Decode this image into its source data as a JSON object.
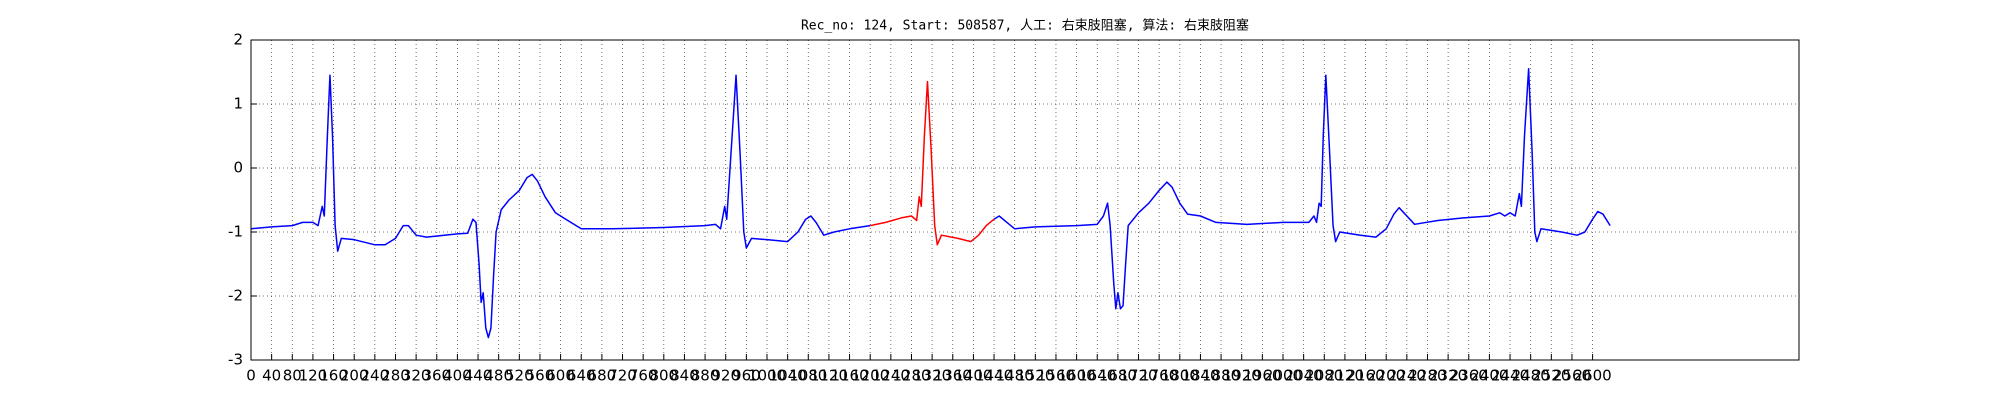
{
  "chart_data": {
    "type": "line",
    "title": "Rec_no: 124, Start: 508587, 人工: 右束肢阻塞, 算法: 右束肢阻塞",
    "xlim": [
      0,
      3000
    ],
    "ylim": [
      -3,
      2
    ],
    "xticks": [
      0,
      40,
      80,
      120,
      160,
      200,
      240,
      280,
      320,
      360,
      400,
      440,
      480,
      520,
      560,
      600,
      640,
      680,
      720,
      760,
      800,
      840,
      880,
      920,
      960,
      1000,
      1040,
      1080,
      1120,
      1160,
      1200,
      1240,
      1280,
      1320,
      1360,
      1400,
      1440,
      1480,
      1520,
      1560,
      1600,
      1640,
      1680,
      1720,
      1760,
      1800,
      1840,
      1880,
      1920,
      1960,
      2000,
      2040,
      2080,
      2120,
      2160,
      2200,
      2240,
      2280,
      2320,
      2360,
      2400,
      2440,
      2480,
      2520,
      2560,
      2600
    ],
    "yticks": [
      -3,
      -2,
      -1,
      0,
      1,
      2
    ],
    "grid": true,
    "x": [
      0,
      40,
      80,
      100,
      120,
      130,
      138,
      142,
      148,
      153,
      158,
      163,
      168,
      175,
      200,
      240,
      260,
      280,
      295,
      305,
      320,
      340,
      400,
      420,
      430,
      436,
      442,
      446,
      450,
      455,
      460,
      465,
      470,
      475,
      485,
      500,
      520,
      535,
      545,
      555,
      570,
      590,
      610,
      640,
      700,
      800,
      880,
      900,
      910,
      918,
      922,
      930,
      940,
      948,
      955,
      960,
      970,
      1000,
      1040,
      1060,
      1075,
      1085,
      1095,
      1110,
      1130,
      1160,
      1200,
      1230,
      1260,
      1280,
      1290,
      1295,
      1299,
      1305,
      1311,
      1318,
      1325,
      1330,
      1338,
      1370,
      1395,
      1410,
      1425,
      1440,
      1450,
      1465,
      1480,
      1520,
      1600,
      1640,
      1652,
      1660,
      1665,
      1672,
      1676,
      1680,
      1685,
      1690,
      1695,
      1700,
      1720,
      1740,
      1760,
      1775,
      1785,
      1800,
      1815,
      1840,
      1870,
      1930,
      2000,
      2050,
      2060,
      2065,
      2070,
      2074,
      2078,
      2083,
      2090,
      2097,
      2102,
      2110,
      2150,
      2180,
      2200,
      2215,
      2225,
      2240,
      2255,
      2300,
      2350,
      2400,
      2420,
      2430,
      2440,
      2450,
      2458,
      2462,
      2468,
      2476,
      2483,
      2488,
      2492,
      2500,
      2540,
      2570,
      2585,
      2600,
      2610,
      2620,
      2634
    ],
    "series": [
      {
        "color": "#0000ff",
        "values": [
          -0.95,
          -0.92,
          -0.9,
          -0.85,
          -0.85,
          -0.9,
          -0.6,
          -0.75,
          0.5,
          1.45,
          0.5,
          -0.9,
          -1.3,
          -1.1,
          -1.12,
          -1.2,
          -1.2,
          -1.1,
          -0.9,
          -0.9,
          -1.05,
          -1.08,
          -1.03,
          -1.02,
          -0.8,
          -0.85,
          -1.5,
          -2.1,
          -1.95,
          -2.5,
          -2.65,
          -2.5,
          -1.7,
          -1.0,
          -0.65,
          -0.5,
          -0.35,
          -0.15,
          -0.1,
          -0.2,
          -0.45,
          -0.7,
          -0.8,
          -0.95,
          -0.95,
          -0.93,
          -0.9,
          -0.88,
          -0.95,
          -0.6,
          -0.8,
          0.2,
          1.45,
          0.2,
          -1.0,
          -1.25,
          -1.1,
          -1.12,
          -1.15,
          -1.0,
          -0.8,
          -0.75,
          -0.85,
          -1.05,
          -1.0,
          -0.95,
          -0.9,
          null,
          null,
          null,
          null,
          null,
          null,
          null,
          null,
          null,
          null,
          null,
          null,
          null,
          null,
          null,
          null,
          -0.8,
          -0.75,
          -0.85,
          -0.95,
          -0.92,
          -0.9,
          -0.88,
          -0.75,
          -0.55,
          -0.9,
          -1.8,
          -2.2,
          -1.95,
          -2.2,
          -2.15,
          -1.5,
          -0.9,
          -0.7,
          -0.55,
          -0.35,
          -0.22,
          -0.3,
          -0.55,
          -0.72,
          -0.75,
          -0.85,
          -0.88,
          -0.85,
          -0.85,
          -0.75,
          -0.85,
          -0.55,
          -0.6,
          0.5,
          1.45,
          0.3,
          -0.9,
          -1.15,
          -1.0,
          -1.05,
          -1.08,
          -0.95,
          -0.72,
          -0.62,
          -0.75,
          -0.88,
          -0.82,
          -0.78,
          -0.75,
          -0.7,
          -0.75,
          -0.7,
          -0.75,
          -0.4,
          -0.6,
          0.5,
          1.55,
          0.2,
          -1.0,
          -1.15,
          -0.95,
          -1.0,
          -1.05,
          -1.0,
          -0.8,
          -0.68,
          -0.72,
          -0.9
        ]
      },
      {
        "color": "#ff0000",
        "values": [
          null,
          null,
          null,
          null,
          null,
          null,
          null,
          null,
          null,
          null,
          null,
          null,
          null,
          null,
          null,
          null,
          null,
          null,
          null,
          null,
          null,
          null,
          null,
          null,
          null,
          null,
          null,
          null,
          null,
          null,
          null,
          null,
          null,
          null,
          null,
          null,
          null,
          null,
          null,
          null,
          null,
          null,
          null,
          null,
          null,
          null,
          null,
          null,
          null,
          null,
          null,
          null,
          null,
          null,
          null,
          null,
          null,
          null,
          null,
          null,
          null,
          null,
          null,
          null,
          null,
          null,
          -0.9,
          -0.85,
          -0.78,
          -0.75,
          -0.82,
          -0.45,
          -0.6,
          0.5,
          1.35,
          0.3,
          -0.9,
          -1.2,
          -1.05,
          -1.1,
          -1.15,
          -1.05,
          -0.9,
          -0.8,
          null,
          null,
          null,
          null,
          null,
          null,
          null,
          null,
          null,
          null,
          null,
          null,
          null,
          null,
          null,
          null,
          null,
          null,
          null,
          null,
          null,
          null,
          null,
          null,
          null,
          null,
          null,
          null,
          null,
          null,
          null,
          null,
          null,
          null,
          null,
          null,
          null,
          null,
          null,
          null,
          null,
          null,
          null,
          null,
          null,
          null,
          null,
          null,
          null,
          null,
          null,
          null,
          null,
          null,
          null,
          null,
          null,
          null,
          null,
          null,
          null,
          null,
          null,
          null,
          null,
          null,
          null
        ]
      }
    ]
  }
}
